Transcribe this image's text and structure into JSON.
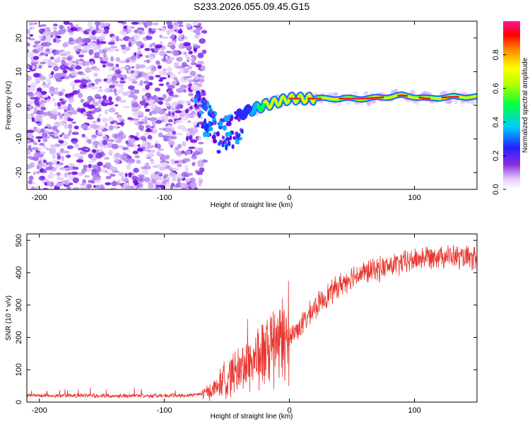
{
  "title": "S233.2026.055.09.45.G15",
  "chart_data": [
    {
      "type": "heatmap",
      "name": "spectrogram",
      "xlabel": "Height of straight line (km)",
      "ylabel": "Frequency (Hz)",
      "xlim": [
        -210,
        150
      ],
      "ylim": [
        -25,
        25
      ],
      "xticks": [
        -200,
        -100,
        0,
        100
      ],
      "yticks": [
        -20,
        -10,
        0,
        10,
        20
      ],
      "noise_region_x": [
        -210,
        -68
      ],
      "transition_region_x": [
        -75,
        -35
      ],
      "signal_ridge": {
        "x": [
          -75,
          -65,
          -55,
          -45,
          -35,
          -20,
          -10,
          0,
          20,
          40,
          60,
          80,
          90,
          100,
          110,
          130,
          150
        ],
        "freq": [
          3,
          -1,
          -6,
          -4,
          -2,
          0,
          1,
          2,
          2,
          2,
          2,
          2.5,
          3,
          2.5,
          2,
          2.5,
          2.5
        ]
      },
      "colorbar": {
        "label": "Normalized spectral amplitude",
        "range": [
          0.0,
          1.0
        ],
        "ticks": [
          "0.0",
          "0.2",
          "0.4",
          "0.6",
          "0.8"
        ]
      }
    },
    {
      "type": "line",
      "name": "snr",
      "xlabel": "Height of straight line (km)",
      "ylabel": "SNR (10 * v/v)",
      "xlim": [
        -210,
        150
      ],
      "ylim": [
        0,
        520
      ],
      "xticks": [
        -200,
        -100,
        0,
        100
      ],
      "yticks": [
        0,
        100,
        200,
        300,
        400,
        500
      ],
      "color": "#e8352e",
      "series": [
        {
          "name": "SNR",
          "x": [
            -210,
            -180,
            -150,
            -120,
            -90,
            -70,
            -60,
            -50,
            -40,
            -30,
            -20,
            -10,
            0,
            10,
            20,
            30,
            40,
            50,
            60,
            70,
            80,
            90,
            100,
            110,
            120,
            130,
            140,
            150
          ],
          "values": [
            20,
            20,
            20,
            20,
            20,
            25,
            40,
            80,
            100,
            130,
            150,
            175,
            200,
            240,
            290,
            330,
            360,
            390,
            400,
            410,
            420,
            430,
            440,
            450,
            455,
            450,
            445,
            440
          ]
        }
      ]
    }
  ]
}
